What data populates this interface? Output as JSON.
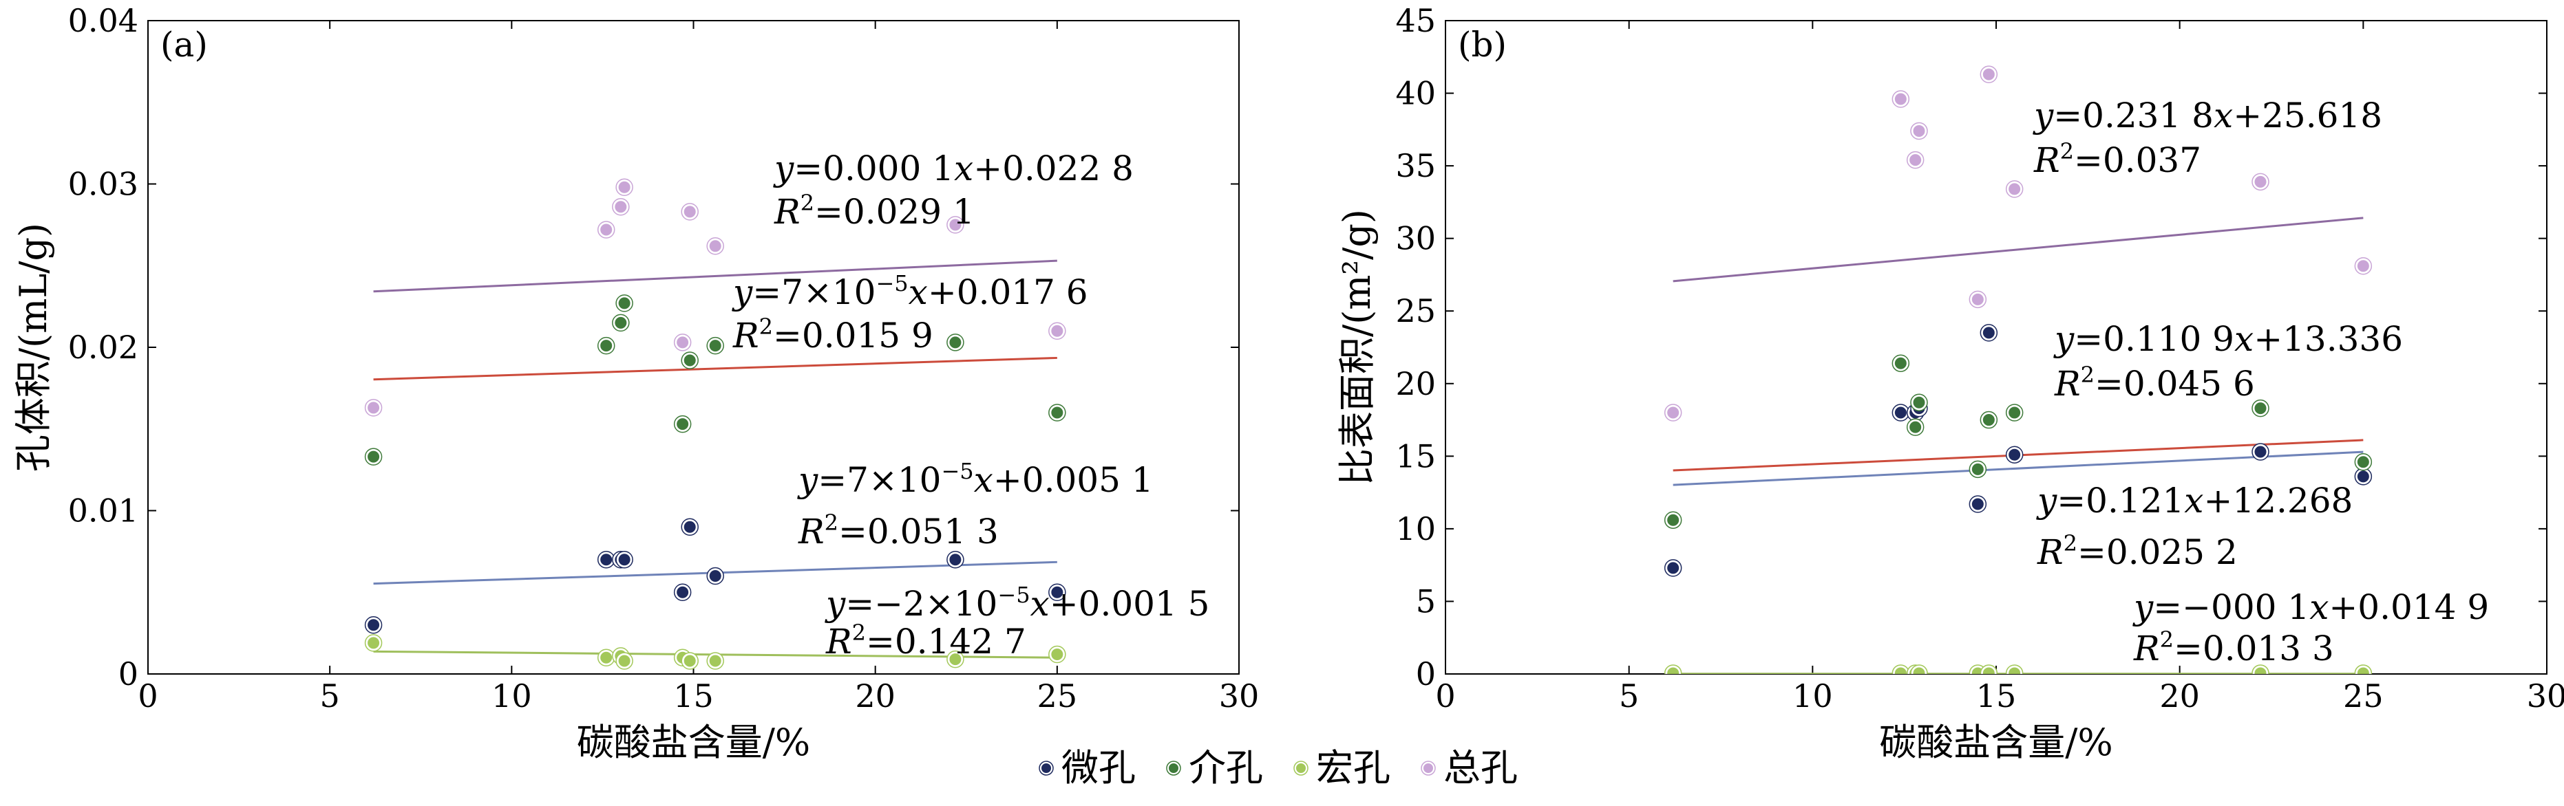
{
  "chart_data": [
    {
      "type": "scatter",
      "panel": "(a)",
      "xlabel": "碳酸盐含量/%",
      "ylabel": "孔体积/(mL/g)",
      "xlim": [
        0,
        30
      ],
      "ylim": [
        0,
        0.04
      ],
      "xticks": [
        "0",
        "5",
        "10",
        "15",
        "20",
        "25",
        "30"
      ],
      "yticks": [
        "0",
        "0.01",
        "0.02",
        "0.03",
        "0.04"
      ],
      "series": [
        {
          "name": "微孔",
          "color": "#1e2a5e",
          "line_color": "#6f83b8",
          "x": [
            6.2,
            12.6,
            13.0,
            13.1,
            14.7,
            14.9,
            15.6,
            22.2,
            25.0
          ],
          "y": [
            0.003,
            0.007,
            0.007,
            0.007,
            0.005,
            0.009,
            0.006,
            0.007,
            0.005
          ],
          "fit": {
            "slope": 7e-05,
            "intercept": 0.0051
          },
          "equation": [
            "y=7×10",
            "−5",
            "x+0.005 1"
          ],
          "r2": "=0.051 3"
        },
        {
          "name": "介孔",
          "color": "#3f7a3a",
          "line_color": "#cc4b3b",
          "x": [
            6.2,
            12.6,
            13.0,
            13.1,
            14.7,
            14.9,
            15.6,
            22.2,
            25.0
          ],
          "y": [
            0.0133,
            0.0201,
            0.0215,
            0.0227,
            0.0153,
            0.0192,
            0.0201,
            0.0203,
            0.016
          ],
          "fit": {
            "slope": 7e-05,
            "intercept": 0.0176
          },
          "equation": [
            "y=7×10",
            "−5",
            "x+0.017 6"
          ],
          "r2": "=0.015 9"
        },
        {
          "name": "宏孔",
          "color": "#a3c85a",
          "line_color": "#9fbf5c",
          "x": [
            6.2,
            12.6,
            13.0,
            13.1,
            14.7,
            14.9,
            15.6,
            22.2,
            25.0
          ],
          "y": [
            0.0019,
            0.001,
            0.0011,
            0.0008,
            0.001,
            0.0008,
            0.0008,
            0.0009,
            0.0012
          ],
          "fit": {
            "slope": -2e-05,
            "intercept": 0.0015
          },
          "equation": [
            "y=−2×10",
            "−5",
            "x+0.001 5"
          ],
          "r2": "=0.142 7"
        },
        {
          "name": "总孔",
          "color": "#c9a5d6",
          "line_color": "#8d6aa0",
          "x": [
            6.2,
            12.6,
            13.0,
            13.1,
            14.7,
            14.9,
            15.6,
            22.2,
            25.0
          ],
          "y": [
            0.0163,
            0.0272,
            0.0286,
            0.0298,
            0.0203,
            0.0283,
            0.0262,
            0.0275,
            0.021
          ],
          "fit": {
            "slope": 0.0001,
            "intercept": 0.0228
          },
          "equation": [
            "y=0.000 1x+0.022 8"
          ],
          "r2": "=0.029 1"
        }
      ]
    },
    {
      "type": "scatter",
      "panel": "(b)",
      "xlabel": "碳酸盐含量/%",
      "ylabel": "比表面积/(m²/g)",
      "xlim": [
        0,
        30
      ],
      "ylim": [
        0,
        45
      ],
      "xticks": [
        "0",
        "5",
        "10",
        "15",
        "20",
        "25",
        "30"
      ],
      "yticks": [
        "0",
        "5",
        "10",
        "15",
        "20",
        "25",
        "30",
        "35",
        "40",
        "45"
      ],
      "series": [
        {
          "name": "微孔",
          "color": "#1e2a5e",
          "line_color": "#6f83b8",
          "x": [
            6.2,
            12.4,
            12.8,
            12.9,
            14.5,
            14.8,
            15.5,
            22.2,
            25.0
          ],
          "y": [
            7.3,
            18.0,
            18.0,
            18.3,
            11.7,
            23.5,
            15.1,
            15.3,
            13.6
          ],
          "fit": {
            "slope": 0.121,
            "intercept": 12.268
          },
          "equation": [
            "y=0.121x+12.268"
          ],
          "r2": "=0.025 2"
        },
        {
          "name": "介孔",
          "color": "#3f7a3a",
          "line_color": "#cc4b3b",
          "x": [
            6.2,
            12.4,
            12.8,
            12.9,
            14.5,
            14.8,
            15.5,
            22.2,
            25.0
          ],
          "y": [
            10.6,
            21.4,
            17.0,
            18.7,
            14.1,
            17.5,
            18.0,
            18.3,
            14.6
          ],
          "fit": {
            "slope": 0.1109,
            "intercept": 13.336
          },
          "equation": [
            "y=0.110 9x+13.336"
          ],
          "r2": "=0.045 6"
        },
        {
          "name": "宏孔",
          "color": "#a3c85a",
          "line_color": "#9fbf5c",
          "x": [
            6.2,
            12.4,
            12.8,
            12.9,
            14.5,
            14.8,
            15.5,
            22.2,
            25.0
          ],
          "y": [
            0.05,
            0.05,
            0.05,
            0.05,
            0.05,
            0.05,
            0.05,
            0.05,
            0.05
          ],
          "fit": {
            "slope": -0.0001,
            "intercept": 0.0149
          },
          "equation": [
            "y=−000 1x+0.014 9"
          ],
          "r2": "=0.013 3"
        },
        {
          "name": "总孔",
          "color": "#c9a5d6",
          "line_color": "#8d6aa0",
          "x": [
            6.2,
            12.4,
            12.8,
            12.9,
            14.5,
            14.8,
            15.5,
            22.2,
            25.0
          ],
          "y": [
            18.0,
            39.6,
            35.4,
            37.4,
            25.8,
            41.3,
            33.4,
            33.9,
            28.1
          ],
          "fit": {
            "slope": 0.2318,
            "intercept": 25.618
          },
          "equation": [
            "y=0.231 8x+25.618"
          ],
          "r2": "=0.037"
        }
      ]
    }
  ],
  "legend": {
    "placement": "bottom-center",
    "items": [
      "微孔",
      "介孔",
      "宏孔",
      "总孔"
    ]
  }
}
